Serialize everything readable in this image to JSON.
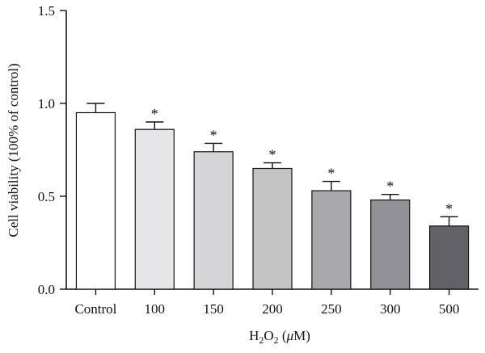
{
  "chart_data": {
    "type": "bar",
    "title": "",
    "xlabel": "H2O2 (μM)",
    "xlabel_parts": {
      "base": "H",
      "sub1": "2",
      "mid": "O",
      "sub2": "2",
      "tail": " (",
      "unit_italic": "μ",
      "unit": "M)"
    },
    "ylabel": "Cell viability (100% of control)",
    "ylim": [
      0,
      1.5
    ],
    "yticks": [
      "0.0",
      "0.5",
      "1.0",
      "1.5"
    ],
    "ytick_values": [
      0,
      0.5,
      1.0,
      1.5
    ],
    "categories": [
      "Control",
      "100",
      "150",
      "200",
      "250",
      "300",
      "500"
    ],
    "values": [
      0.95,
      0.86,
      0.74,
      0.65,
      0.53,
      0.48,
      0.34
    ],
    "errors": [
      0.05,
      0.04,
      0.045,
      0.03,
      0.05,
      0.03,
      0.05
    ],
    "significance": [
      "",
      "*",
      "*",
      "*",
      "*",
      "*",
      "*"
    ],
    "bar_colors": [
      "#ffffff",
      "#e6e6e8",
      "#d5d5d8",
      "#c3c3c6",
      "#a9a9ad",
      "#929296",
      "#626266"
    ],
    "grid": false,
    "legend": "none"
  }
}
